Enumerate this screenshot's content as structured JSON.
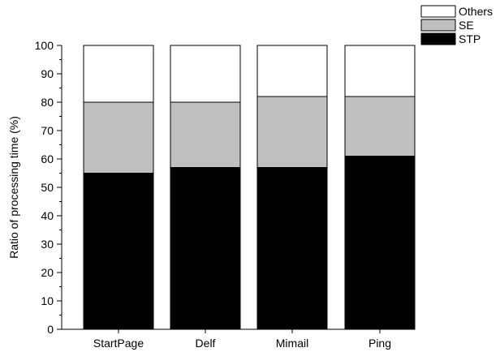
{
  "chart_data": {
    "type": "bar",
    "stacked": true,
    "categories": [
      "StartPage",
      "Delf",
      "Mimail",
      "Ping"
    ],
    "series": [
      {
        "name": "STP",
        "values": [
          55,
          57,
          57,
          61
        ],
        "color": "#000000"
      },
      {
        "name": "SE",
        "values": [
          25,
          23,
          25,
          21
        ],
        "color": "#c0c0c0"
      },
      {
        "name": "Others",
        "values": [
          20,
          20,
          18,
          18
        ],
        "color": "#ffffff"
      }
    ],
    "ylabel": "Ratio of processing time (%)",
    "xlabel": "",
    "ylim": [
      0,
      100
    ],
    "yticks": [
      0,
      10,
      20,
      30,
      40,
      50,
      60,
      70,
      80,
      90,
      100
    ],
    "grid": false,
    "legend_position": "top-right",
    "legend_order": [
      "Others",
      "SE",
      "STP"
    ]
  }
}
